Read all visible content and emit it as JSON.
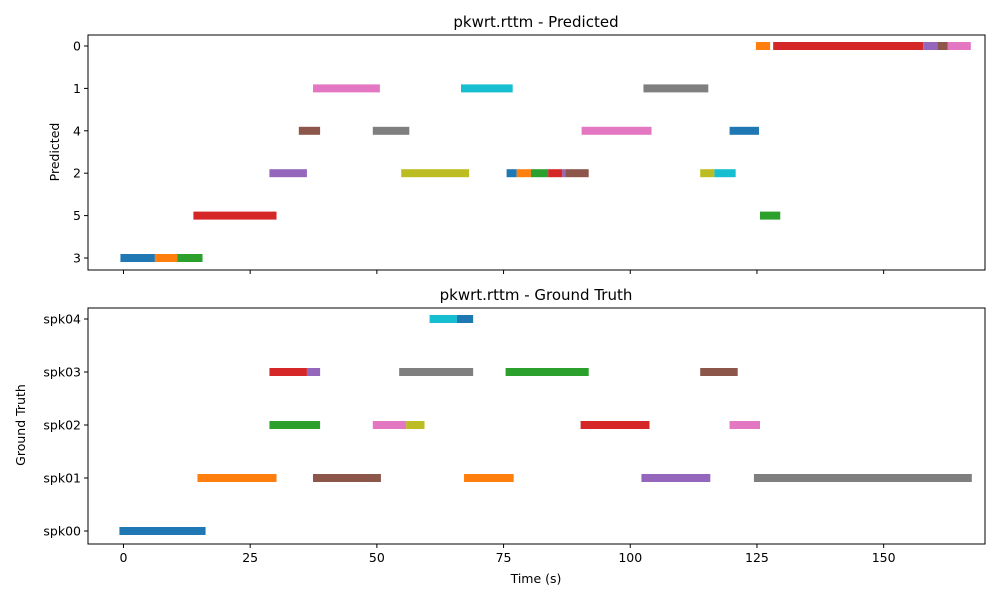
{
  "chart_data": [
    {
      "type": "timeline",
      "title": "pkwrt.rttm - Predicted",
      "ylabel": "Predicted",
      "xlabel": "",
      "xlim": [
        -7,
        170
      ],
      "xticks": [
        0,
        25,
        50,
        75,
        100,
        125,
        150
      ],
      "show_xtick_labels": false,
      "rows": [
        "0",
        "1",
        "4",
        "2",
        "5",
        "3"
      ],
      "segments": [
        {
          "row": "0",
          "start": 124.8,
          "end": 127.6,
          "color": "#ff7f0e"
        },
        {
          "row": "0",
          "start": 128.2,
          "end": 157.8,
          "color": "#d62728"
        },
        {
          "row": "0",
          "start": 157.8,
          "end": 160.6,
          "color": "#9467bd"
        },
        {
          "row": "0",
          "start": 160.6,
          "end": 162.6,
          "color": "#8c564b"
        },
        {
          "row": "0",
          "start": 162.6,
          "end": 167.2,
          "color": "#e377c2"
        },
        {
          "row": "1",
          "start": 37.4,
          "end": 50.6,
          "color": "#e377c2"
        },
        {
          "row": "1",
          "start": 66.6,
          "end": 76.8,
          "color": "#17becf"
        },
        {
          "row": "1",
          "start": 102.6,
          "end": 115.4,
          "color": "#7f7f7f"
        },
        {
          "row": "4",
          "start": 34.6,
          "end": 38.8,
          "color": "#8c564b"
        },
        {
          "row": "4",
          "start": 49.2,
          "end": 56.4,
          "color": "#7f7f7f"
        },
        {
          "row": "4",
          "start": 90.4,
          "end": 104.2,
          "color": "#e377c2"
        },
        {
          "row": "4",
          "start": 119.6,
          "end": 125.4,
          "color": "#1f77b4"
        },
        {
          "row": "2",
          "start": 28.8,
          "end": 36.2,
          "color": "#9467bd"
        },
        {
          "row": "2",
          "start": 54.8,
          "end": 68.2,
          "color": "#bcbd22"
        },
        {
          "row": "2",
          "start": 75.6,
          "end": 77.6,
          "color": "#1f77b4"
        },
        {
          "row": "2",
          "start": 77.6,
          "end": 80.4,
          "color": "#ff7f0e"
        },
        {
          "row": "2",
          "start": 80.4,
          "end": 83.8,
          "color": "#2ca02c"
        },
        {
          "row": "2",
          "start": 83.8,
          "end": 86.6,
          "color": "#d62728"
        },
        {
          "row": "2",
          "start": 86.6,
          "end": 87.2,
          "color": "#9467bd"
        },
        {
          "row": "2",
          "start": 87.2,
          "end": 91.8,
          "color": "#8c564b"
        },
        {
          "row": "2",
          "start": 113.8,
          "end": 116.6,
          "color": "#bcbd22"
        },
        {
          "row": "2",
          "start": 116.6,
          "end": 120.8,
          "color": "#17becf"
        },
        {
          "row": "5",
          "start": 13.8,
          "end": 30.2,
          "color": "#d62728"
        },
        {
          "row": "5",
          "start": 125.6,
          "end": 129.6,
          "color": "#2ca02c"
        },
        {
          "row": "3",
          "start": -0.6,
          "end": 6.2,
          "color": "#1f77b4"
        },
        {
          "row": "3",
          "start": 6.2,
          "end": 10.6,
          "color": "#ff7f0e"
        },
        {
          "row": "3",
          "start": 10.6,
          "end": 15.6,
          "color": "#2ca02c"
        }
      ]
    },
    {
      "type": "timeline",
      "title": "pkwrt.rttm - Ground Truth",
      "ylabel": "Ground Truth",
      "xlabel": "Time (s)",
      "xlim": [
        -7,
        170
      ],
      "xticks": [
        0,
        25,
        50,
        75,
        100,
        125,
        150
      ],
      "show_xtick_labels": true,
      "rows": [
        "spk04",
        "spk03",
        "spk02",
        "spk01",
        "spk00"
      ],
      "segments": [
        {
          "row": "spk04",
          "start": 60.4,
          "end": 65.8,
          "color": "#17becf"
        },
        {
          "row": "spk04",
          "start": 65.8,
          "end": 69.0,
          "color": "#1f77b4"
        },
        {
          "row": "spk03",
          "start": 28.8,
          "end": 36.2,
          "color": "#d62728"
        },
        {
          "row": "spk03",
          "start": 36.2,
          "end": 38.8,
          "color": "#9467bd"
        },
        {
          "row": "spk03",
          "start": 54.4,
          "end": 69.0,
          "color": "#7f7f7f"
        },
        {
          "row": "spk03",
          "start": 75.4,
          "end": 91.8,
          "color": "#2ca02c"
        },
        {
          "row": "spk03",
          "start": 113.8,
          "end": 121.2,
          "color": "#8c564b"
        },
        {
          "row": "spk02",
          "start": 28.8,
          "end": 38.8,
          "color": "#2ca02c"
        },
        {
          "row": "spk02",
          "start": 49.2,
          "end": 55.8,
          "color": "#e377c2"
        },
        {
          "row": "spk02",
          "start": 55.8,
          "end": 59.4,
          "color": "#bcbd22"
        },
        {
          "row": "spk02",
          "start": 90.2,
          "end": 103.8,
          "color": "#d62728"
        },
        {
          "row": "spk02",
          "start": 119.6,
          "end": 125.6,
          "color": "#e377c2"
        },
        {
          "row": "spk01",
          "start": 14.6,
          "end": 30.2,
          "color": "#ff7f0e"
        },
        {
          "row": "spk01",
          "start": 37.4,
          "end": 50.8,
          "color": "#8c564b"
        },
        {
          "row": "spk01",
          "start": 67.2,
          "end": 77.0,
          "color": "#ff7f0e"
        },
        {
          "row": "spk01",
          "start": 102.2,
          "end": 115.8,
          "color": "#9467bd"
        },
        {
          "row": "spk01",
          "start": 124.4,
          "end": 167.4,
          "color": "#7f7f7f"
        },
        {
          "row": "spk00",
          "start": -0.8,
          "end": 16.2,
          "color": "#1f77b4"
        }
      ]
    }
  ]
}
